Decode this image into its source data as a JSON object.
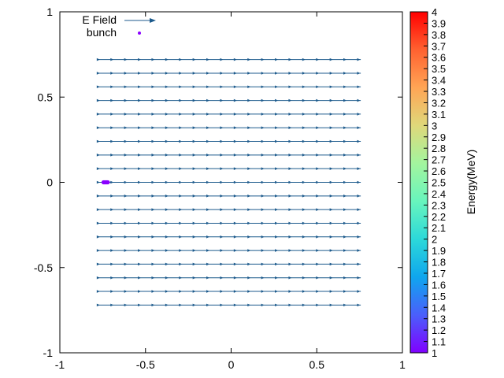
{
  "chart_data": {
    "type": "vector-field",
    "title": "",
    "xlabel": "",
    "ylabel": "",
    "xlim": [
      -1,
      1
    ],
    "ylim": [
      -1,
      1
    ],
    "x_ticks": [
      "-1",
      "-0.5",
      "0",
      "0.5",
      "1"
    ],
    "y_ticks": [
      "1",
      "0.5",
      "0",
      "-0.5",
      "-1"
    ],
    "grid": false,
    "legend_position": "top-left",
    "legend": [
      {
        "label": "E Field",
        "marker": "arrow"
      },
      {
        "label": "bunch",
        "marker": "point"
      }
    ],
    "series": [
      {
        "name": "E Field",
        "kind": "arrows",
        "color": "#1c5a8c",
        "x_start": -0.78,
        "x_end": 0.72,
        "x_step": 0.08,
        "y_start": -0.72,
        "y_end": 0.72,
        "y_step": 0.08,
        "direction": [
          1,
          0
        ]
      },
      {
        "name": "bunch",
        "kind": "points",
        "color": "#8a00ff",
        "x": [
          -0.745,
          -0.74,
          -0.735,
          -0.73,
          -0.725,
          -0.72
        ],
        "y": [
          0,
          0,
          0,
          0,
          0,
          0
        ]
      }
    ],
    "colorbar": {
      "label": "Energy(MeV)",
      "min": 1,
      "max": 4,
      "ticks": [
        "1",
        "1.1",
        "1.2",
        "1.3",
        "1.4",
        "1.5",
        "1.6",
        "1.7",
        "1.8",
        "1.9",
        "2",
        "2.1",
        "2.2",
        "2.3",
        "2.4",
        "2.5",
        "2.6",
        "2.7",
        "2.8",
        "2.9",
        "3",
        "3.1",
        "3.2",
        "3.3",
        "3.4",
        "3.5",
        "3.6",
        "3.7",
        "3.8",
        "3.9",
        "4"
      ],
      "colors": [
        "#8000ff",
        "#4a5ffb",
        "#0fa6ee",
        "#2cd9d9",
        "#68f5bd",
        "#a3f59e",
        "#dfd87a",
        "#ffa555",
        "#ff6130",
        "#ff0000"
      ]
    }
  }
}
